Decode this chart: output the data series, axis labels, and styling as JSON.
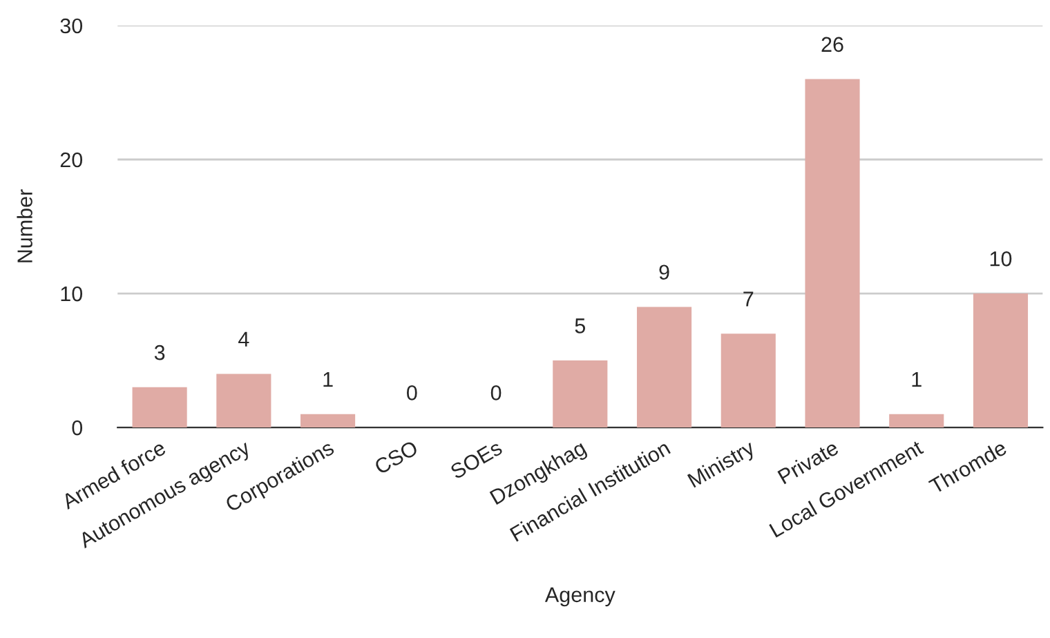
{
  "chart_data": {
    "type": "bar",
    "xlabel": "Agency",
    "ylabel": "Number",
    "categories": [
      "Armed force",
      "Autonomous agency",
      "Corporations",
      "CSO",
      "SOEs",
      "Dzongkhag",
      "Financial Institution",
      "Ministry",
      "Private",
      "Local Government",
      "Thromde"
    ],
    "values": [
      3,
      4,
      1,
      0,
      0,
      5,
      9,
      7,
      26,
      1,
      10
    ],
    "color": "#e0aba5",
    "ylim": [
      0,
      30
    ],
    "yticks": [
      0,
      10,
      20,
      30
    ],
    "grid": "y",
    "data_labels": true
  }
}
